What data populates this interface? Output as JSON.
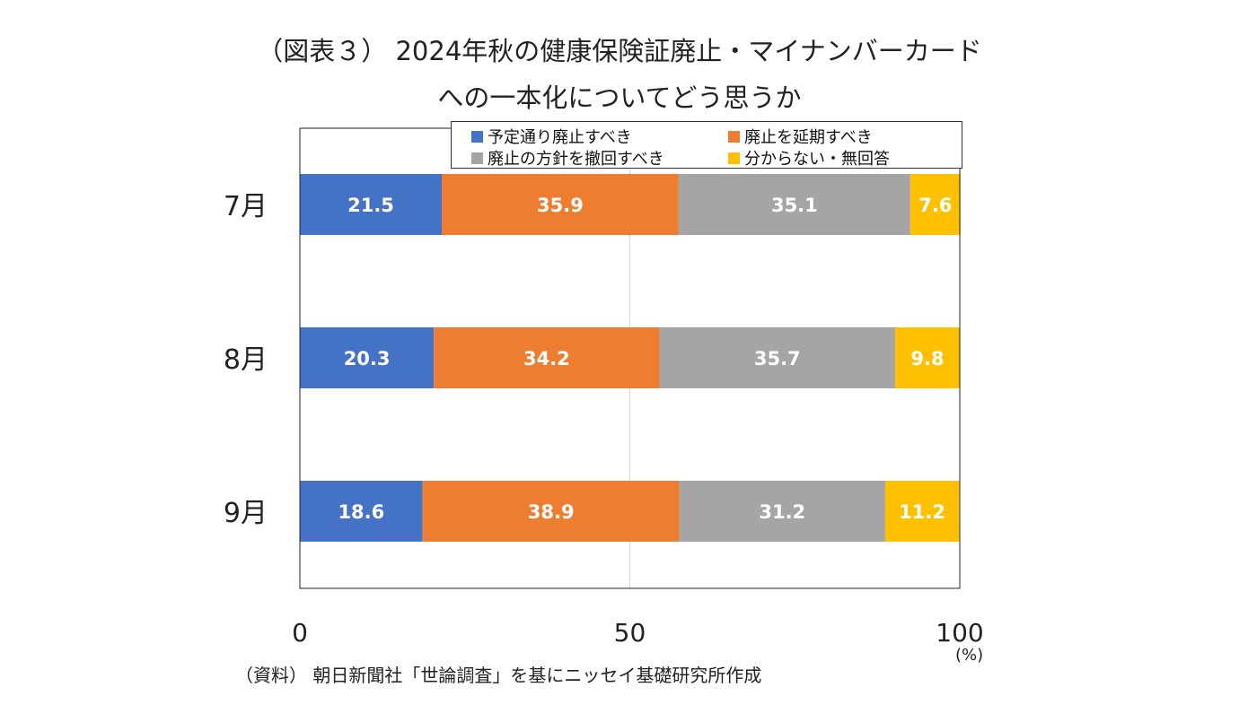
{
  "title_line1": "（図表３） 2024年秋の健康保険証廃止・マイナンバーカード",
  "title_line2": "への一本化についてどう思うか",
  "source": "（資料） 朝日新聞社「世論調査」を基にニッセイ基礎研究所作成",
  "chart_data": {
    "type": "bar",
    "orientation": "horizontal",
    "stacked": true,
    "categories": [
      "7月",
      "8月",
      "9月"
    ],
    "series": [
      {
        "name": "予定通り廃止すべき",
        "color": "#4472C4",
        "values": [
          21.5,
          20.3,
          18.6
        ]
      },
      {
        "name": "廃止を延期すべき",
        "color": "#ED7D31",
        "values": [
          35.9,
          34.2,
          38.9
        ]
      },
      {
        "name": "廃止の方針を撤回すべき",
        "color": "#A5A5A5",
        "values": [
          35.1,
          35.7,
          31.2
        ]
      },
      {
        "name": "分からない・無回答",
        "color": "#FFC000",
        "values": [
          7.6,
          9.8,
          11.2
        ]
      }
    ],
    "xlim": [
      0,
      100
    ],
    "xticks": [
      "0",
      "50",
      "100"
    ],
    "xunit": "(%)",
    "grid": "vertical at 50",
    "legend": "top"
  }
}
